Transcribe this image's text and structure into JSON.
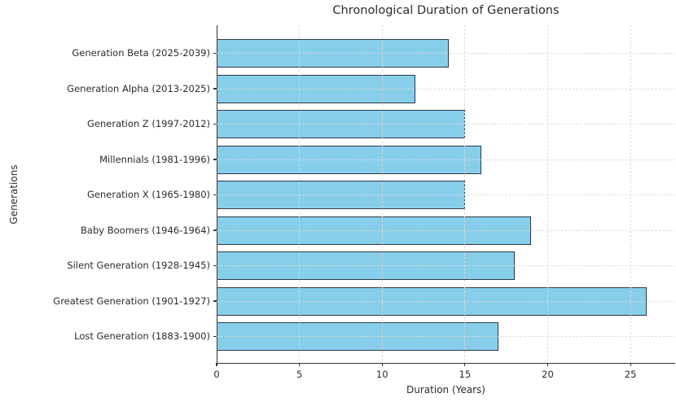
{
  "chart_data": {
    "type": "bar",
    "orientation": "horizontal",
    "title": "Chronological Duration of Generations",
    "xlabel": "Duration (Years)",
    "ylabel": "Generations",
    "categories": [
      "Generation Beta (2025-2039)",
      "Generation Alpha (2013-2025)",
      "Generation Z (1997-2012)",
      "Millennials (1981-1996)",
      "Generation X (1965-1980)",
      "Baby Boomers (1946-1964)",
      "Silent Generation (1928-1945)",
      "Greatest Generation (1901-1927)",
      "Lost Generation (1883-1900)"
    ],
    "values": [
      14,
      12,
      15,
      16,
      15,
      19,
      18,
      26,
      17
    ],
    "xticks": [
      0,
      5,
      10,
      15,
      20,
      25
    ],
    "xlim": [
      0,
      27.7
    ],
    "grid": "dashed-both-axes-above-bars",
    "legend": "none",
    "bar_fill_color": "#87CEEB",
    "bar_edge_color": "#2e3b47",
    "grid_color": "#d9d9d9",
    "axis_color": "#333333",
    "text_color": "#2b2b2b"
  }
}
